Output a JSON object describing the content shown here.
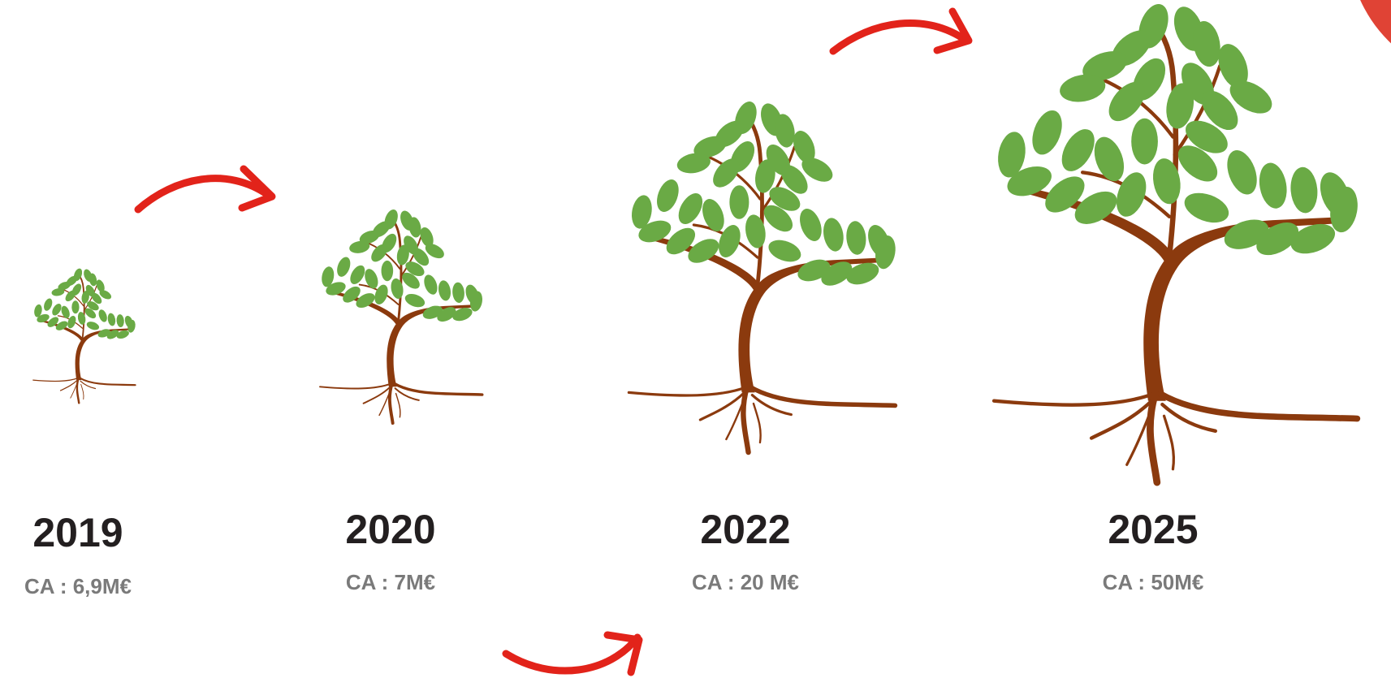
{
  "stages": [
    {
      "year": "2019",
      "revenue": "CA : 6,9M€"
    },
    {
      "year": "2020",
      "revenue": "CA : 7M€"
    },
    {
      "year": "2022",
      "revenue": "CA : 20 M€"
    },
    {
      "year": "2025",
      "revenue": "CA : 50M€"
    }
  ]
}
